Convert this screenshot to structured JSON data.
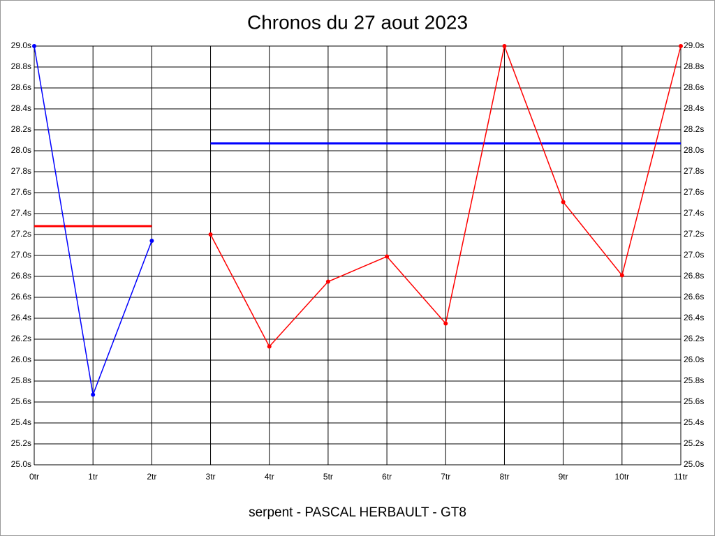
{
  "chart_data": {
    "type": "line",
    "title": "Chronos du 27 aout 2023",
    "xlabel": "serpent - PASCAL HERBAULT - GT8",
    "categories": [
      "0tr",
      "1tr",
      "2tr",
      "3tr",
      "4tr",
      "5tr",
      "6tr",
      "7tr",
      "8tr",
      "9tr",
      "10tr",
      "11tr"
    ],
    "series": [
      {
        "color": "#0000ff",
        "values": [
          29.0,
          25.67,
          27.14,
          null,
          null,
          null,
          null,
          null,
          null,
          null,
          null,
          null
        ]
      },
      {
        "color": "#ff0000",
        "values": [
          null,
          null,
          null,
          27.2,
          26.13,
          26.75,
          26.99,
          26.35,
          29.0,
          27.51,
          26.81,
          29.0
        ]
      }
    ],
    "hlines": [
      {
        "value": 27.28,
        "from": 0,
        "to": 2,
        "color": "#ff0000"
      },
      {
        "value": 28.07,
        "from": 3,
        "to": 11,
        "color": "#0000ff"
      }
    ],
    "ylim": [
      25.0,
      29.0
    ],
    "yticks": [
      {
        "value": 25.0,
        "label": "25.0s"
      },
      {
        "value": 25.2,
        "label": "25.2s"
      },
      {
        "value": 25.4,
        "label": "25.4s"
      },
      {
        "value": 25.6,
        "label": "25.6s"
      },
      {
        "value": 25.8,
        "label": "25.8s"
      },
      {
        "value": 26.0,
        "label": "26.0s"
      },
      {
        "value": 26.2,
        "label": "26.2s"
      },
      {
        "value": 26.4,
        "label": "26.4s"
      },
      {
        "value": 26.6,
        "label": "26.6s"
      },
      {
        "value": 26.8,
        "label": "26.8s"
      },
      {
        "value": 27.0,
        "label": "27.0s"
      },
      {
        "value": 27.2,
        "label": "27.2s"
      },
      {
        "value": 27.4,
        "label": "27.4s"
      },
      {
        "value": 27.6,
        "label": "27.6s"
      },
      {
        "value": 27.8,
        "label": "27.8s"
      },
      {
        "value": 28.0,
        "label": "28.0s"
      },
      {
        "value": 28.2,
        "label": "28.2s"
      },
      {
        "value": 28.4,
        "label": "28.4s"
      },
      {
        "value": 28.6,
        "label": "28.6s"
      },
      {
        "value": 28.8,
        "label": "28.8s"
      },
      {
        "value": 29.0,
        "label": "29.0s"
      }
    ],
    "grid": true
  }
}
